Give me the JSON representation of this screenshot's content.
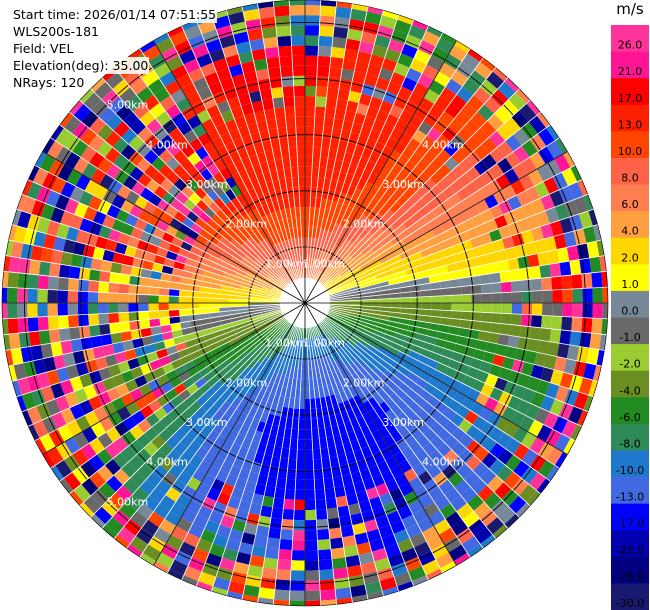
{
  "chart_data": {
    "type": "heatmap",
    "subtype": "ppi-radar",
    "info": {
      "start_time": "Start time: 2026/01/14 07:51:55",
      "instrument": "WLS200s-181",
      "field": "Field: VEL",
      "elevation": "Elevation(deg): 35.00",
      "nrays": "NRays: 120"
    },
    "rays": 120,
    "max_range_km": 5.4,
    "range_rings_km": [
      1,
      2,
      3,
      4,
      5
    ],
    "ring_labels": [
      "1.00km",
      "2.00km",
      "3.00km",
      "4.00km",
      "5.00km"
    ],
    "colorbar": {
      "unit": "m/s",
      "ticks": [
        "26.0",
        "21.0",
        "17.0",
        "13.0",
        "10.0",
        "8.0",
        "6.0",
        "4.0",
        "2.0",
        "1.0",
        "0.0",
        "-1.0",
        "-2.0",
        "-4.0",
        "-6.0",
        "-8.0",
        "-10.0",
        "-13.0",
        "-17.0",
        "-21.0",
        "-26.0",
        "-30.0"
      ],
      "colors": [
        "#ff3399",
        "#ff1493",
        "#ff0000",
        "#ff2000",
        "#ff4500",
        "#ff6347",
        "#ff7f50",
        "#ffa040",
        "#ffd700",
        "#ffff00",
        "#778899",
        "#696969",
        "#9acd32",
        "#6b8e23",
        "#228b22",
        "#2e8b57",
        "#1e78cc",
        "#4169e1",
        "#0000ff",
        "#0000b0",
        "#000080",
        "#191970"
      ]
    }
  }
}
